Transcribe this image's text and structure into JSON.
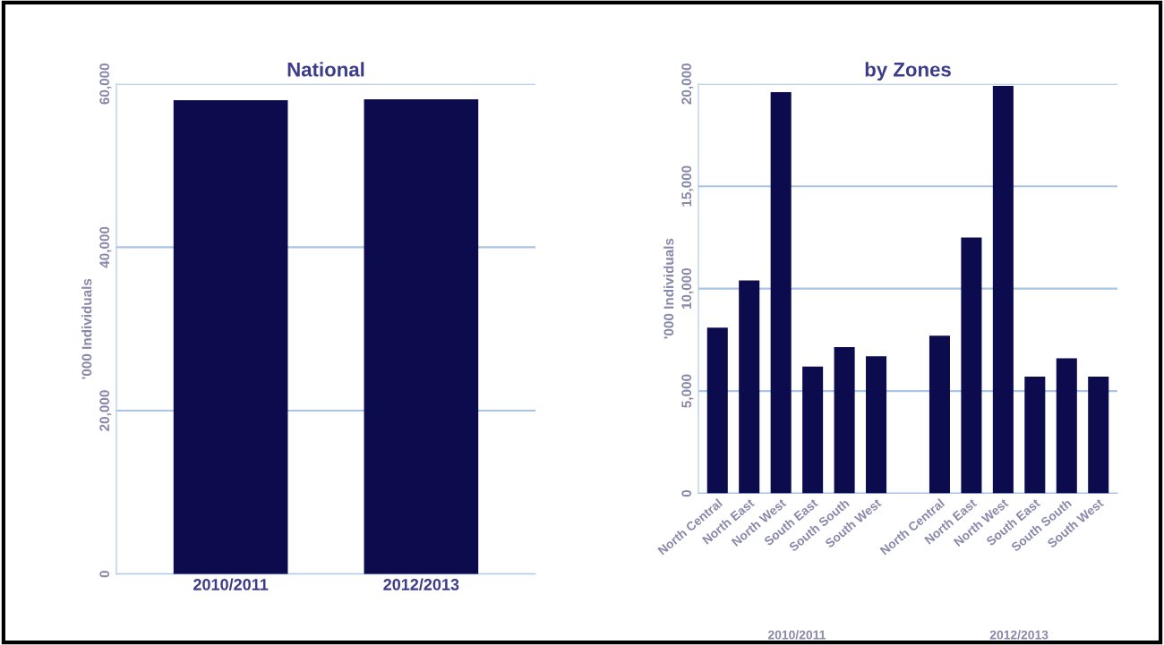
{
  "chart_data": [
    {
      "type": "bar",
      "title": "National",
      "ylabel": "'000 Individuals",
      "categories": [
        "2010/2011",
        "2012/2013"
      ],
      "values": [
        58000,
        58100
      ],
      "color": "#0b0b4d",
      "ylim": [
        0,
        60000
      ],
      "yticks": [
        0,
        {
          "value": 20000,
          "label": "20,000"
        },
        {
          "value": 40000,
          "label": "40,000"
        },
        {
          "value": 60000,
          "label": "60,000"
        }
      ],
      "grid": "y"
    },
    {
      "type": "bar",
      "title": "by Zones",
      "ylabel": "'000 Individuals",
      "categories": [
        "North Central",
        "North East",
        "North West",
        "South East",
        "South South",
        "South West",
        null,
        "North Central",
        "North East",
        "North West",
        "South East",
        "South South",
        "South West"
      ],
      "values": [
        8100,
        10400,
        19600,
        6200,
        7150,
        6700,
        null,
        7700,
        12500,
        19900,
        5700,
        6600,
        5700
      ],
      "color": "#0b0b4d",
      "ylim": [
        0,
        20000
      ],
      "yticks": [
        0,
        {
          "value": 5000,
          "label": "5,000"
        },
        {
          "value": 10000,
          "label": "10,000"
        },
        {
          "value": 15000,
          "label": "15,000"
        },
        {
          "value": 20000,
          "label": "20,000"
        }
      ],
      "grid": "y",
      "annotations": [
        "2010/2011",
        "2012/2013"
      ]
    }
  ]
}
